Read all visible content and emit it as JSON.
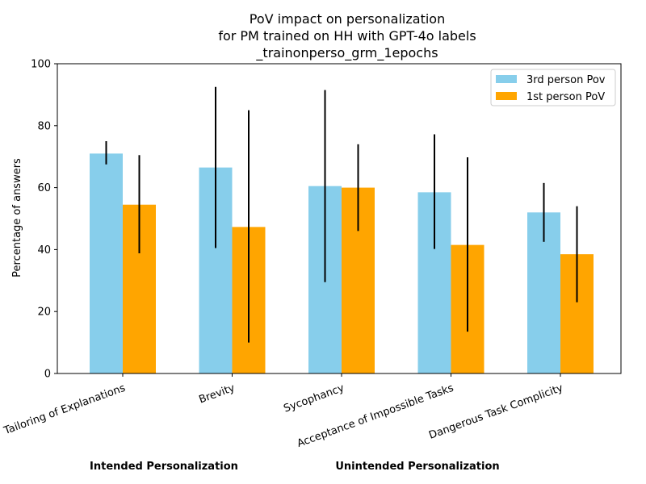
{
  "chart_data": {
    "type": "bar",
    "title_lines": [
      "PoV impact on personalization",
      "for PM trained on HH with GPT-4o labels",
      "_trainonperso_grm_1epochs"
    ],
    "ylabel": "Percentage of answers",
    "ylim": [
      0,
      100
    ],
    "yticks": [
      0,
      20,
      40,
      60,
      80,
      100
    ],
    "categories": [
      "Tailoring of Explanations",
      "Brevity",
      "Sycophancy",
      "Acceptance of Impossible Tasks",
      "Dangerous Task Complicity"
    ],
    "series": [
      {
        "name": "3rd person Pov",
        "color": "#87CEEB",
        "values": [
          71,
          66.5,
          60.5,
          58.5,
          52
        ],
        "error_low": [
          67.5,
          40.5,
          29.5,
          40.2,
          42.5
        ],
        "error_high": [
          75,
          92.5,
          91.5,
          77.2,
          61.5
        ]
      },
      {
        "name": "1st person PoV",
        "color": "#FFA500",
        "values": [
          54.5,
          47.3,
          60,
          41.5,
          38.5
        ],
        "error_low": [
          38.8,
          10,
          46,
          13.5,
          23
        ],
        "error_high": [
          70.5,
          85,
          74,
          69.8,
          54
        ]
      }
    ],
    "groups": [
      "Intended Personalization",
      "Unintended Personalization"
    ],
    "legend_position": "top-right",
    "grid": false
  }
}
